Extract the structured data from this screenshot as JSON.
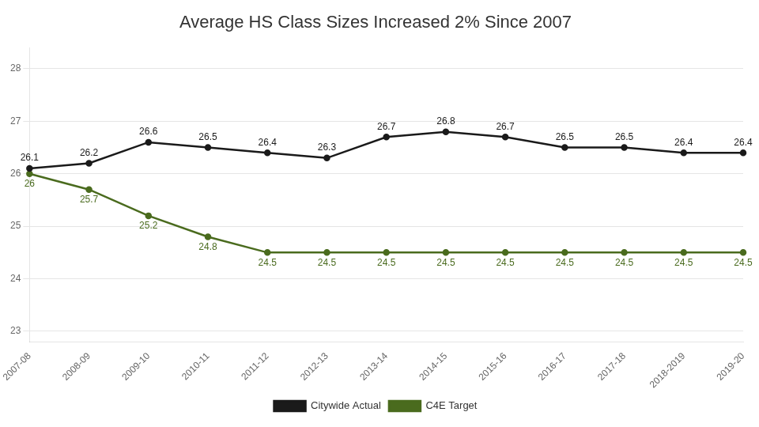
{
  "chart_data": {
    "type": "line",
    "title": "Average HS Class Sizes Increased 2% Since 2007",
    "categories": [
      "2007-08",
      "2008-09",
      "2009-10",
      "2010-11",
      "2011-12",
      "2012-13",
      "2013-14",
      "2014-15",
      "2015-16",
      "2016-17",
      "2017-18",
      "2018-2019",
      "2019-20"
    ],
    "series": [
      {
        "name": "Citywide Actual",
        "color": "#1a1a1a",
        "marker": "circle",
        "values": [
          26.1,
          26.2,
          26.6,
          26.5,
          26.4,
          26.3,
          26.7,
          26.8,
          26.7,
          26.5,
          26.5,
          26.4,
          26.4
        ]
      },
      {
        "name": "C4E Target",
        "color": "#4a6b1e",
        "marker": "circle",
        "values": [
          26.0,
          25.7,
          25.2,
          24.8,
          24.5,
          24.5,
          24.5,
          24.5,
          24.5,
          24.5,
          24.5,
          24.5,
          24.5
        ]
      }
    ],
    "ylim": [
      22.8,
      28.4
    ],
    "yticks": [
      23,
      24,
      25,
      26,
      27,
      28
    ],
    "grid": true,
    "legend": "bottom",
    "data_labels": true
  }
}
